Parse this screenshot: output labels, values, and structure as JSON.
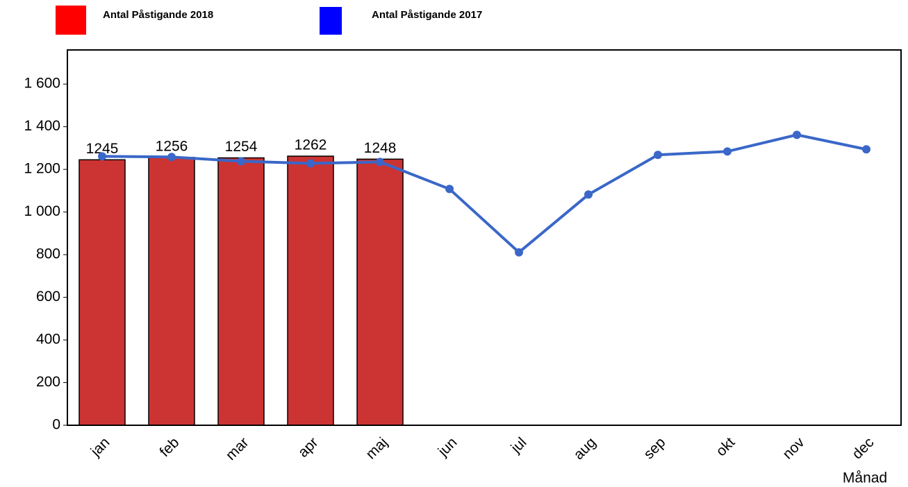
{
  "chart_data": {
    "type": "bar_line",
    "categories": [
      "jan",
      "feb",
      "mar",
      "apr",
      "maj",
      "jun",
      "jul",
      "aug",
      "sep",
      "okt",
      "nov",
      "dec"
    ],
    "series": [
      {
        "name": "Antal Påstigande 2018",
        "type": "bar",
        "color": "#cc3333",
        "legend_color": "#ff0000",
        "values": [
          1245,
          1256,
          1254,
          1262,
          1248,
          null,
          null,
          null,
          null,
          null,
          null,
          null
        ]
      },
      {
        "name": "Antal Påstigande 2017",
        "type": "line",
        "color": "#3a67c8",
        "legend_color": "#0000ff",
        "values": [
          1261,
          1258,
          1238,
          1228,
          1235,
          1108,
          811,
          1082,
          1268,
          1284,
          1362,
          1294
        ]
      }
    ],
    "x_label": "Månad",
    "ylim": [
      0,
      1760
    ],
    "yticks": [
      0,
      200,
      400,
      600,
      800,
      {
        "value": 1000,
        "label": "1 000"
      },
      {
        "value": 1200,
        "label": "1 200"
      },
      {
        "value": 1400,
        "label": "1 400"
      },
      {
        "value": 1600,
        "label": "1 600"
      }
    ]
  }
}
